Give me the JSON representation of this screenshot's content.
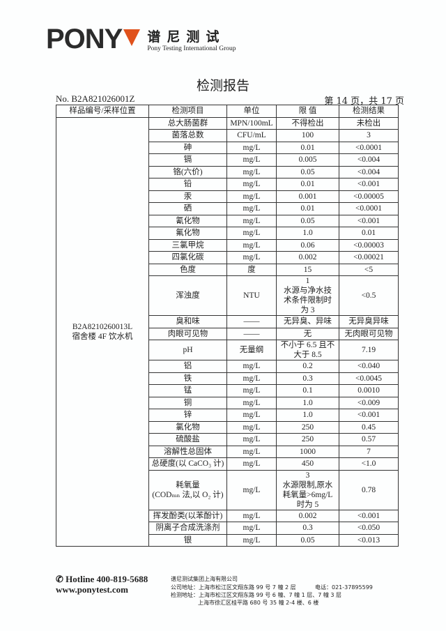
{
  "header": {
    "logo_text": "PONY",
    "brand_cn": "谱尼测试",
    "brand_en": "Pony Testing International Group",
    "accent": "#e0521c"
  },
  "title": "检测报告",
  "report_no": "No. B2A821026001Z",
  "page_info": "第 14 页，共 17 页",
  "table": {
    "columns": [
      "样品编号/采样位置",
      "检测项目",
      "单位",
      "限 值",
      "检测结果"
    ],
    "sample_id": "B2A8210260013L",
    "sample_location": "宿舍楼 4F 饮水机",
    "rows": [
      [
        "总大肠菌群",
        "MPN/100mL",
        "不得检出",
        "未检出"
      ],
      [
        "菌落总数",
        "CFU/mL",
        "100",
        "3"
      ],
      [
        "砷",
        "mg/L",
        "0.01",
        "<0.0001"
      ],
      [
        "镉",
        "mg/L",
        "0.005",
        "<0.004"
      ],
      [
        "铬(六价)",
        "mg/L",
        "0.05",
        "<0.004"
      ],
      [
        "铅",
        "mg/L",
        "0.01",
        "<0.001"
      ],
      [
        "汞",
        "mg/L",
        "0.001",
        "<0.00005"
      ],
      [
        "硒",
        "mg/L",
        "0.01",
        "<0.0001"
      ],
      [
        "氰化物",
        "mg/L",
        "0.05",
        "<0.001"
      ],
      [
        "氟化物",
        "mg/L",
        "1.0",
        "0.01"
      ],
      [
        "三氯甲烷",
        "mg/L",
        "0.06",
        "<0.00003"
      ],
      [
        "四氯化碳",
        "mg/L",
        "0.002",
        "<0.00021"
      ],
      [
        "色度",
        "度",
        "15",
        "<5"
      ],
      [
        "浑浊度",
        "NTU",
        "1\n水源与净水技\n术条件限制时\n为 3",
        "<0.5"
      ],
      [
        "臭和味",
        "——",
        "无异臭、异味",
        "无异臭异味"
      ],
      [
        "肉眼可见物",
        "——",
        "无",
        "无肉眼可见物"
      ],
      [
        "pH",
        "无量纲",
        "不小于 6.5 且不\n大于 8.5",
        "7.19"
      ],
      [
        "铝",
        "mg/L",
        "0.2",
        "<0.040"
      ],
      [
        "铁",
        "mg/L",
        "0.3",
        "<0.0045"
      ],
      [
        "锰",
        "mg/L",
        "0.1",
        "0.0010"
      ],
      [
        "铜",
        "mg/L",
        "1.0",
        "<0.009"
      ],
      [
        "锌",
        "mg/L",
        "1.0",
        "<0.001"
      ],
      [
        "氯化物",
        "mg/L",
        "250",
        "0.45"
      ],
      [
        "硫酸盐",
        "mg/L",
        "250",
        "0.57"
      ],
      [
        "溶解性总固体",
        "mg/L",
        "1000",
        "7"
      ],
      [
        "总硬度(以 CaCO₃ 计)",
        "mg/L",
        "450",
        "<1.0"
      ],
      [
        "耗氧量\n(CODₘₙ 法,以 O₂ 计)",
        "mg/L",
        "3\n水源限制,原水\n耗氧量>6mg/L\n时为 5",
        "0.78"
      ],
      [
        "挥发酚类(以苯酚计)",
        "mg/L",
        "0.002",
        "<0.001"
      ],
      [
        "阴离子合成洗涤剂",
        "mg/L",
        "0.3",
        "<0.050"
      ],
      [
        "银",
        "mg/L",
        "0.05",
        "<0.013"
      ]
    ]
  },
  "footer": {
    "hotline": "✆ Hotline 400-819-5688",
    "website": "www.ponytest.com",
    "company": "谱尼测试集团上海有限公司",
    "company_address": "公司地址：上海市松江区文翔东路 99 号 7 幢 2 层",
    "phone": "电话：021-37895599",
    "lab_address_1": "检测地址：上海市松江区文翔东路 99 号 6 幢、7 幢 1 层、7 幢 3 层",
    "lab_address_2": "上海市徐汇区桂平路 680 号 35 幢 2-4 楼、6 楼"
  }
}
